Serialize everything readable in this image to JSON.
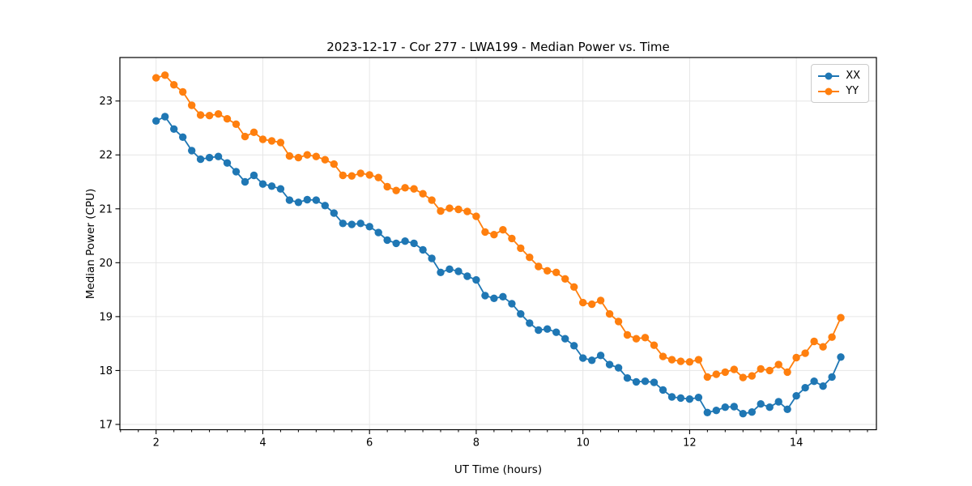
{
  "figure": {
    "background": "#ffffff"
  },
  "chart_data": {
    "type": "line",
    "title": "2023-12-17 - Cor 277 - LWA199 - Median Power vs. Time",
    "xlabel": "UT Time (hours)",
    "ylabel": "Median Power (CPU)",
    "xlim": [
      1.321,
      15.501
    ],
    "ylim": [
      16.902,
      23.807
    ],
    "xticks": [
      2,
      4,
      6,
      8,
      10,
      12,
      14
    ],
    "yticks": [
      17,
      18,
      19,
      20,
      21,
      22,
      23
    ],
    "x_minor_tick_step": 0.33333,
    "grid": true,
    "grid_color": "#e6e6e6",
    "legend_position": "upper right",
    "x": [
      2.0,
      2.167,
      2.333,
      2.5,
      2.667,
      2.833,
      3.0,
      3.167,
      3.333,
      3.5,
      3.667,
      3.833,
      4.0,
      4.167,
      4.333,
      4.5,
      4.667,
      4.833,
      5.0,
      5.167,
      5.333,
      5.5,
      5.667,
      5.833,
      6.0,
      6.167,
      6.333,
      6.5,
      6.667,
      6.833,
      7.0,
      7.167,
      7.333,
      7.5,
      7.667,
      7.833,
      8.0,
      8.167,
      8.333,
      8.5,
      8.667,
      8.833,
      9.0,
      9.167,
      9.333,
      9.5,
      9.667,
      9.833,
      10.0,
      10.167,
      10.333,
      10.5,
      10.667,
      10.833,
      11.0,
      11.167,
      11.333,
      11.5,
      11.667,
      11.833,
      12.0,
      12.167,
      12.333,
      12.5,
      12.667,
      12.833,
      13.0,
      13.167,
      13.333,
      13.5,
      13.667,
      13.833,
      14.0,
      14.167,
      14.333,
      14.5,
      14.667,
      14.833
    ],
    "series": [
      {
        "name": "XX",
        "color": "#1f77b4",
        "marker": "circle",
        "values": [
          22.63,
          22.71,
          22.48,
          22.33,
          22.08,
          21.92,
          21.95,
          21.97,
          21.85,
          21.69,
          21.5,
          21.62,
          21.46,
          21.42,
          21.37,
          21.16,
          21.12,
          21.17,
          21.16,
          21.06,
          20.92,
          20.73,
          20.71,
          20.73,
          20.67,
          20.56,
          20.42,
          20.36,
          20.4,
          20.36,
          20.24,
          20.08,
          19.82,
          19.88,
          19.84,
          19.75,
          19.68,
          19.39,
          19.34,
          19.37,
          19.24,
          19.05,
          18.88,
          18.75,
          18.77,
          18.71,
          18.59,
          18.46,
          18.23,
          18.19,
          18.28,
          18.11,
          18.05,
          17.86,
          17.79,
          17.8,
          17.78,
          17.64,
          17.51,
          17.49,
          17.47,
          17.5,
          17.22,
          17.26,
          17.32,
          17.33,
          17.2,
          17.23,
          17.38,
          17.32,
          17.42,
          17.28,
          17.53,
          17.68,
          17.8,
          17.71,
          17.88,
          18.25
        ]
      },
      {
        "name": "YY",
        "color": "#ff7f0e",
        "marker": "circle",
        "values": [
          23.43,
          23.48,
          23.3,
          23.17,
          22.92,
          22.74,
          22.73,
          22.76,
          22.67,
          22.57,
          22.34,
          22.42,
          22.29,
          22.26,
          22.23,
          21.98,
          21.95,
          22.0,
          21.97,
          21.91,
          21.83,
          21.62,
          21.61,
          21.66,
          21.63,
          21.58,
          21.41,
          21.34,
          21.39,
          21.37,
          21.28,
          21.16,
          20.96,
          21.01,
          20.99,
          20.95,
          20.86,
          20.57,
          20.52,
          20.61,
          20.45,
          20.27,
          20.1,
          19.93,
          19.85,
          19.82,
          19.7,
          19.55,
          19.26,
          19.23,
          19.3,
          19.05,
          18.91,
          18.66,
          18.59,
          18.61,
          18.47,
          18.26,
          18.2,
          18.17,
          18.16,
          18.2,
          17.88,
          17.93,
          17.97,
          18.02,
          17.87,
          17.9,
          18.03,
          18.0,
          18.11,
          17.97,
          18.24,
          18.32,
          18.54,
          18.44,
          18.62,
          18.98
        ]
      }
    ]
  }
}
